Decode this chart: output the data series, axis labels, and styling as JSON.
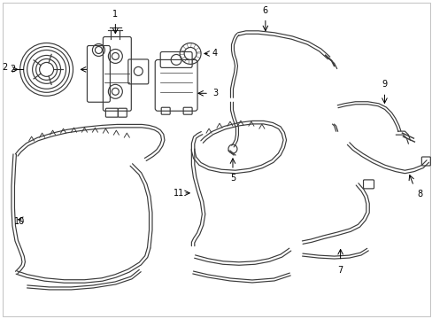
{
  "background_color": "#ffffff",
  "line_color": "#3a3a3a",
  "text_color": "#000000",
  "fig_width": 4.89,
  "fig_height": 3.6,
  "dpi": 100,
  "border_color": "#aaaaaa"
}
